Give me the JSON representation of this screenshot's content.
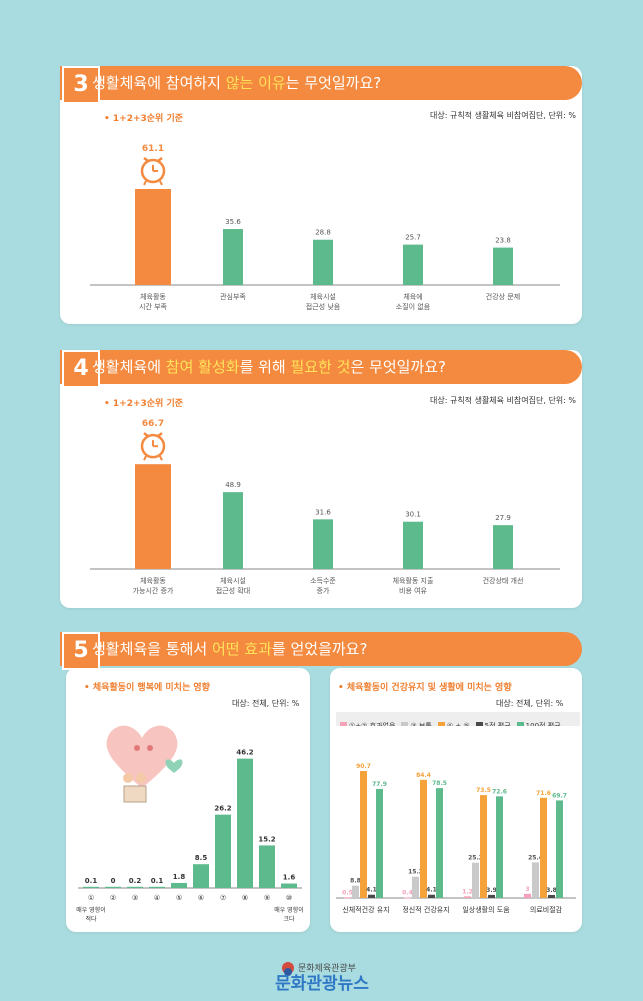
{
  "panels": [
    {
      "num": "3",
      "title_parts": [
        "생활체육에 참여하지 ",
        "않는 이유",
        "는 무엇일까요?"
      ]
    },
    {
      "num": "4",
      "title_parts": [
        "생활체육에 ",
        "참여 활성화",
        "를 위해 ",
        "필요한 것",
        "은 무엇일까요?"
      ]
    },
    {
      "num": "5",
      "title_parts": [
        "생활체육을 통해서 ",
        "어떤 효과",
        "를 얻었을까요?"
      ]
    }
  ],
  "colors": {
    "accent": "#f38a3f",
    "green": "#5cba8c",
    "highlight": "#ffe25a",
    "gray": "#c9c9c9",
    "dark": "#4a4a4a",
    "pink": "#f3a2b8"
  },
  "chart_data": [
    {
      "type": "bar",
      "subtitle": "1+2+3순위 기준",
      "note": "대상: 규칙적 생활체육 비참여집단, 단위: %",
      "categories": [
        "체육활동\n시간 부족",
        "관심부족",
        "체육시설\n접근성 낮음",
        "체육에\n소질이 없음",
        "건강상 문제"
      ],
      "values": [
        61.1,
        35.6,
        28.8,
        25.7,
        23.8
      ]
    },
    {
      "type": "bar",
      "subtitle": "1+2+3순위 기준",
      "note": "대상: 규칙적 생활체육 비참여집단, 단위: %",
      "categories": [
        "체육활동\n가능시간 증가",
        "체육시설\n접근성 확대",
        "소득수준\n증가",
        "체육활동 지출\n비용 여유",
        "건강상태 개선"
      ],
      "values": [
        66.7,
        48.9,
        31.6,
        30.1,
        27.9
      ]
    },
    {
      "type": "bar",
      "subtitle": "체육활동이 행복에 미치는 영향",
      "note": "대상: 전체, 단위: %",
      "categories": [
        "①",
        "②",
        "③",
        "④",
        "⑤",
        "⑥",
        "⑦",
        "⑧",
        "⑨",
        "⑩"
      ],
      "values": [
        0.1,
        0,
        0.2,
        0.1,
        1.8,
        8.5,
        26.2,
        46.2,
        15.2,
        1.6
      ],
      "value_labels": [
        "0.1",
        "0",
        "0.2",
        "0.1",
        "1.8",
        "8.5",
        "26.2",
        "46.2",
        "15.2",
        "1.6"
      ],
      "left_label": "매우 영향이\n적다",
      "right_label": "매우 영향이\n크다"
    },
    {
      "type": "bar",
      "subtitle": "체육활동이 건강유지 및 생활에 미치는 영향",
      "note": "대상: 전체, 단위: %",
      "legend": [
        "①+② 효과없음",
        "③ 보통",
        "④ + ⑤",
        "5점 평균",
        "100점 평균"
      ],
      "categories": [
        "신체적건강 유지",
        "정신적 건강유지",
        "일상생활의 도움",
        "의료비절감"
      ],
      "series": [
        {
          "name": "①+② 효과없음",
          "color": "#f3a2b8",
          "values": [
            0.5,
            0.4,
            1.2,
            3
          ]
        },
        {
          "name": "③ 보통",
          "color": "#c9c9c9",
          "values": [
            8.8,
            15.2,
            25.2,
            25.4
          ]
        },
        {
          "name": "④ + ⑤",
          "color": "#f5a23a",
          "values": [
            90.7,
            84.4,
            73.5,
            71.6
          ]
        },
        {
          "name": "5점 평균",
          "color": "#4a4a4a",
          "values": [
            4.1,
            4.1,
            3.9,
            3.8
          ]
        },
        {
          "name": "100점 평균",
          "color": "#5cba8c",
          "values": [
            77.9,
            78.5,
            72.6,
            69.7
          ]
        }
      ]
    }
  ],
  "footer": {
    "ministry": "문화체육관광부",
    "brand": "문화관광뉴스"
  }
}
